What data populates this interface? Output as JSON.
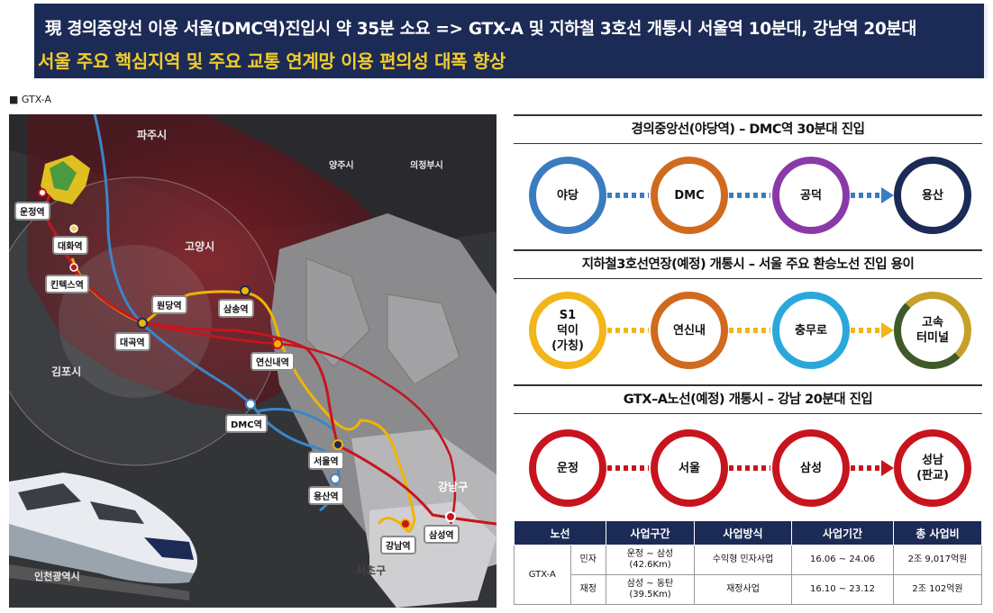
{
  "header": {
    "line1": "現 경의중앙선 이용 서울(DMC역)진입시 약 35분 소요 => GTX-A 및 지하철 3호선 개통시 서울역 10분대, 강남역 20분대",
    "line2": "서울 주요 핵심지역 및 주요 교통 연계망 이용 편의성 대폭 향상"
  },
  "map": {
    "label": "■ GTX-A",
    "cities": [
      "파주시",
      "양주시",
      "의정부시",
      "고양시",
      "김포시",
      "강남구",
      "서초구",
      "인천광역시"
    ],
    "stations": [
      "운정역",
      "대화역",
      "킨텍스역",
      "원당역",
      "삼송역",
      "대곡역",
      "연신내역",
      "DMC역",
      "서울역",
      "용산역",
      "강남역",
      "삼성역"
    ],
    "colors": {
      "gtx": "#c8141e",
      "line3": "#f0b400",
      "gyeongui": "#3a86c8"
    }
  },
  "routes": [
    {
      "title": "경의중앙선(야당역) – DMC역 30분대 진입",
      "nodes": [
        {
          "label": "야당",
          "color": "#3a7cc0"
        },
        {
          "label": "DMC",
          "color": "#d06a1e"
        },
        {
          "label": "공덕",
          "color": "#8a3aa8"
        },
        {
          "label": "용산",
          "color": "#1c2b55"
        }
      ],
      "dot_color": "#3a7cc0"
    },
    {
      "title": "지하철3호선연장(예정) 개통시 – 서울 주요 환승노선 진입 용이",
      "nodes": [
        {
          "label": "S1\n덕이\n(가칭)",
          "color": "#f2b51a"
        },
        {
          "label": "연신내",
          "color": "#d06a1e"
        },
        {
          "label": "충무로",
          "color": "#2aa8dc"
        },
        {
          "label": "고속\n터미널",
          "color": "#c6a028"
        }
      ],
      "dot_color": "#f2b51a"
    },
    {
      "title": "GTX–A노선(예정) 개통시 – 강남 20분대 진입",
      "nodes": [
        {
          "label": "운정",
          "color": "#c8141e"
        },
        {
          "label": "서울",
          "color": "#c8141e"
        },
        {
          "label": "삼성",
          "color": "#c8141e"
        },
        {
          "label": "성남\n(판교)",
          "color": "#c8141e"
        }
      ],
      "dot_color": "#c8141e"
    }
  ],
  "table": {
    "headers": [
      "노선",
      "사업구간",
      "사업방식",
      "사업기간",
      "총 사업비"
    ],
    "line": "GTX-A",
    "rows": [
      {
        "type": "민자",
        "section": "운정 ~ 삼성\n(42.6Km)",
        "method": "수익형 민자사업",
        "period": "16.06 ~ 24.06",
        "cost": "2조 9,017억원"
      },
      {
        "type": "재정",
        "section": "삼성 ~ 동탄\n(39.5Km)",
        "method": "재정사업",
        "period": "16.10 ~ 23.12",
        "cost": "2조 102억원"
      }
    ]
  }
}
